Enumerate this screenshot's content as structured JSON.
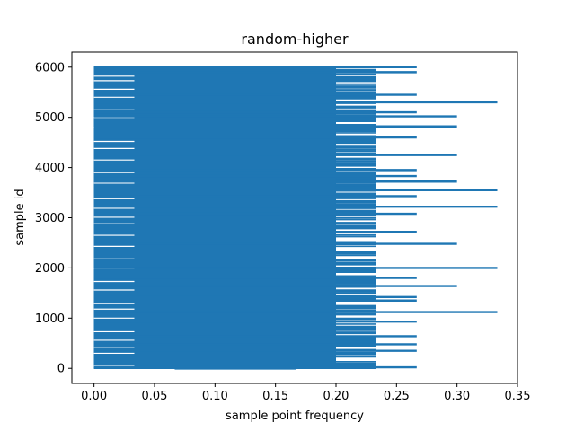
{
  "chart_data": {
    "type": "bar",
    "orientation": "horizontal",
    "title": "random-higher",
    "xlabel": "sample point frequency",
    "ylabel": "sample id",
    "xlim": [
      -0.0183,
      0.35
    ],
    "ylim": [
      -300,
      6300
    ],
    "xticks": [
      0.0,
      0.05,
      0.1,
      0.15,
      0.2,
      0.25,
      0.3,
      0.35
    ],
    "xtick_labels": [
      "0.00",
      "0.05",
      "0.10",
      "0.15",
      "0.20",
      "0.25",
      "0.30",
      "0.35"
    ],
    "yticks": [
      0,
      1000,
      2000,
      3000,
      4000,
      5000,
      6000
    ],
    "ytick_labels": [
      "0",
      "1000",
      "2000",
      "3000",
      "4000",
      "5000",
      "6000"
    ],
    "bar_color": "#1f77b4",
    "grid": false,
    "series": [
      {
        "x_levels": [
          0.0,
          0.0333,
          0.0667,
          0.1,
          0.1333,
          0.1667,
          0.2,
          0.2333,
          0.2667,
          0.3,
          0.3333
        ],
        "bands": [
          {
            "range": [
              0,
              6000
            ],
            "value": 0.1333
          },
          {
            "range": [
              0,
              6000
            ],
            "value": 0.1667
          },
          {
            "range": [
              0,
              5990
            ],
            "value": 0.2
          }
        ],
        "long_bars": [
          {
            "y": 20,
            "value": 0.2667
          },
          {
            "y": 350,
            "value": 0.2667
          },
          {
            "y": 480,
            "value": 0.2667
          },
          {
            "y": 640,
            "value": 0.2667
          },
          {
            "y": 930,
            "value": 0.2667
          },
          {
            "y": 1120,
            "value": 0.3333
          },
          {
            "y": 1350,
            "value": 0.2667
          },
          {
            "y": 1420,
            "value": 0.2667
          },
          {
            "y": 1640,
            "value": 0.3
          },
          {
            "y": 1800,
            "value": 0.2667
          },
          {
            "y": 2000,
            "value": 0.3333
          },
          {
            "y": 2480,
            "value": 0.3
          },
          {
            "y": 2720,
            "value": 0.2667
          },
          {
            "y": 3080,
            "value": 0.2667
          },
          {
            "y": 3220,
            "value": 0.3333
          },
          {
            "y": 3430,
            "value": 0.2667
          },
          {
            "y": 3550,
            "value": 0.3333
          },
          {
            "y": 3720,
            "value": 0.3
          },
          {
            "y": 3830,
            "value": 0.2667
          },
          {
            "y": 3950,
            "value": 0.2667
          },
          {
            "y": 4250,
            "value": 0.3
          },
          {
            "y": 4600,
            "value": 0.2667
          },
          {
            "y": 4820,
            "value": 0.3
          },
          {
            "y": 5020,
            "value": 0.3
          },
          {
            "y": 5100,
            "value": 0.2667
          },
          {
            "y": 5300,
            "value": 0.3333
          },
          {
            "y": 5450,
            "value": 0.2667
          },
          {
            "y": 5900,
            "value": 0.2667
          },
          {
            "y": 6000,
            "value": 0.2667
          }
        ]
      }
    ]
  }
}
